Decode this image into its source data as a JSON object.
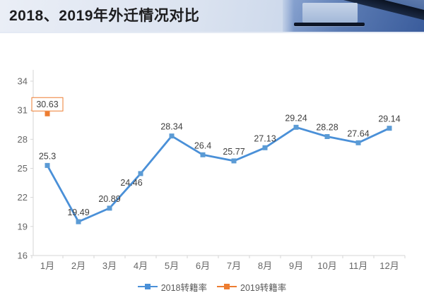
{
  "header": {
    "title": "2018、2019年外迁情况对比"
  },
  "chart_data": {
    "type": "line",
    "title": "2018、2019年外迁情况对比",
    "categories": [
      "1月",
      "2月",
      "3月",
      "4月",
      "5月",
      "6月",
      "7月",
      "8月",
      "9月",
      "10月",
      "11月",
      "12月"
    ],
    "series": [
      {
        "name": "2018转籍率",
        "color": "#4A90D8",
        "marker_color": "#5B9BD5",
        "values": [
          25.3,
          19.49,
          20.89,
          24.46,
          28.34,
          26.4,
          25.77,
          27.13,
          29.24,
          28.28,
          27.64,
          29.14
        ]
      },
      {
        "name": "2019转籍率",
        "color": "#ED7D31",
        "marker_color": "#ED7D31",
        "values": [
          30.63,
          null,
          null,
          null,
          null,
          null,
          null,
          null,
          null,
          null,
          null,
          null
        ]
      }
    ],
    "ylim": [
      16,
      34
    ],
    "ytick_step": 3,
    "yticks": [
      16,
      19,
      22,
      25,
      28,
      31,
      34
    ],
    "grid": false,
    "legend_position": "bottom",
    "annotation": {
      "series": "2019转籍率",
      "category": "1月",
      "label": "30.63",
      "boxed": true,
      "box_border_color": "#ED7D31"
    },
    "colors": {
      "axis_line": "#d6d6d6",
      "tick_label": "#666666",
      "value_label": "#3f3f3f"
    }
  }
}
